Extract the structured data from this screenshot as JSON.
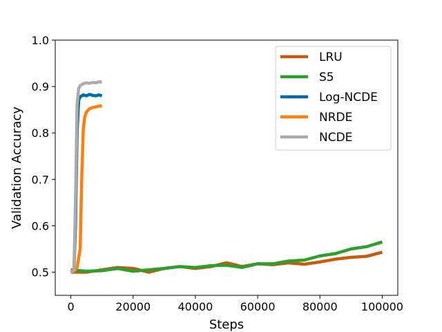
{
  "chart_data": {
    "type": "line",
    "title": "",
    "xlabel": "Steps",
    "ylabel": "Validation Accuracy",
    "xlim": [
      -5000,
      105000
    ],
    "ylim": [
      0.45,
      1.0
    ],
    "xticks": [
      0,
      20000,
      40000,
      60000,
      80000,
      100000
    ],
    "xtick_labels": [
      "0",
      "20000",
      "40000",
      "60000",
      "80000",
      "100000"
    ],
    "yticks": [
      0.5,
      0.6,
      0.7,
      0.8,
      0.9,
      1.0
    ],
    "ytick_labels": [
      "0.5",
      "0.6",
      "0.7",
      "0.8",
      "0.9",
      "1.0"
    ],
    "grid": false,
    "legend_position": "top-right",
    "series": [
      {
        "name": "LRU",
        "color": "#c85a0a",
        "x": [
          0,
          5000,
          10000,
          15000,
          20000,
          25000,
          30000,
          35000,
          40000,
          45000,
          50000,
          55000,
          60000,
          65000,
          70000,
          75000,
          80000,
          85000,
          90000,
          95000,
          100000
        ],
        "y": [
          0.5,
          0.5,
          0.505,
          0.51,
          0.508,
          0.5,
          0.508,
          0.512,
          0.508,
          0.512,
          0.52,
          0.512,
          0.518,
          0.516,
          0.52,
          0.517,
          0.522,
          0.528,
          0.532,
          0.534,
          0.543
        ]
      },
      {
        "name": "S5",
        "color": "#2ca02c",
        "x": [
          0,
          5000,
          10000,
          15000,
          20000,
          25000,
          30000,
          35000,
          40000,
          45000,
          50000,
          55000,
          60000,
          65000,
          70000,
          75000,
          80000,
          85000,
          90000,
          95000,
          100000
        ],
        "y": [
          0.505,
          0.502,
          0.503,
          0.508,
          0.502,
          0.505,
          0.508,
          0.512,
          0.51,
          0.514,
          0.515,
          0.51,
          0.518,
          0.518,
          0.524,
          0.526,
          0.535,
          0.54,
          0.55,
          0.555,
          0.565
        ]
      },
      {
        "name": "Log-NCDE",
        "color": "#006ba4",
        "x": [
          0,
          1000,
          1500,
          2000,
          2500,
          3000,
          4000,
          5000,
          6000,
          7000,
          8000,
          9000,
          10000
        ],
        "y": [
          0.5,
          0.505,
          0.6,
          0.8,
          0.87,
          0.878,
          0.882,
          0.88,
          0.883,
          0.881,
          0.88,
          0.882,
          0.88
        ]
      },
      {
        "name": "NRDE",
        "color": "#ff800e",
        "x": [
          0,
          1000,
          2000,
          3000,
          3500,
          4000,
          4500,
          5000,
          6000,
          7000,
          8000,
          9000,
          10000
        ],
        "y": [
          0.5,
          0.502,
          0.51,
          0.55,
          0.7,
          0.81,
          0.835,
          0.845,
          0.852,
          0.855,
          0.856,
          0.858,
          0.858
        ]
      },
      {
        "name": "NCDE",
        "color": "#ababab",
        "x": [
          0,
          1000,
          1500,
          2000,
          2500,
          3000,
          4000,
          5000,
          6000,
          7000,
          8000,
          9000,
          10000
        ],
        "y": [
          0.5,
          0.505,
          0.65,
          0.86,
          0.895,
          0.902,
          0.906,
          0.908,
          0.907,
          0.909,
          0.908,
          0.91,
          0.91
        ]
      }
    ]
  }
}
